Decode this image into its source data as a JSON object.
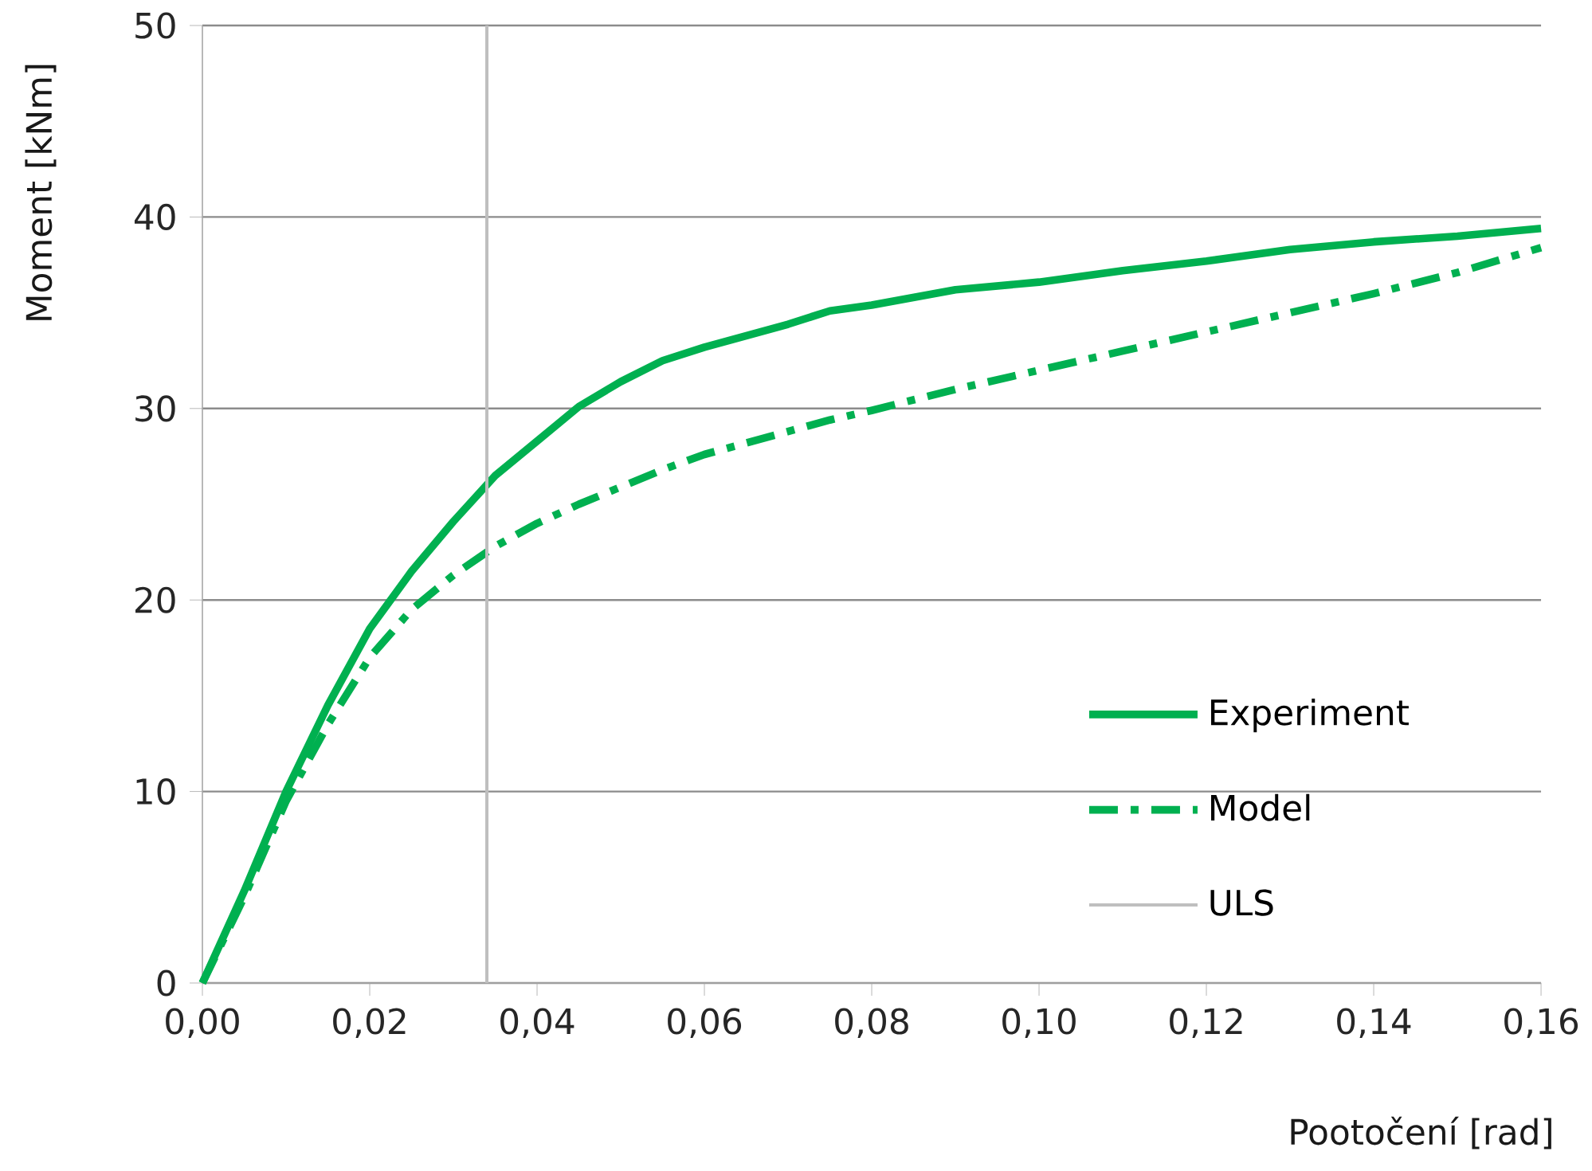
{
  "chart_data": {
    "type": "line",
    "xlabel": "Pootočení [rad]",
    "ylabel": "Moment  [kNm]",
    "x": [
      0,
      0.005,
      0.01,
      0.015,
      0.02,
      0.025,
      0.03,
      0.035,
      0.04,
      0.045,
      0.05,
      0.055,
      0.06,
      0.065,
      0.07,
      0.075,
      0.08,
      0.09,
      0.1,
      0.11,
      0.12,
      0.13,
      0.14,
      0.15,
      0.16
    ],
    "series": [
      {
        "name": "Experiment",
        "color": "#00b050",
        "line_style": "solid",
        "values": [
          0,
          4.8,
          10,
          14.5,
          18.5,
          21.5,
          24.1,
          26.5,
          28.3,
          30.1,
          31.4,
          32.5,
          33.2,
          33.8,
          34.4,
          35.1,
          35.4,
          36.2,
          36.6,
          37.2,
          37.7,
          38.3,
          38.7,
          39.0,
          39.4
        ]
      },
      {
        "name": "Model",
        "color": "#00b050",
        "line_style": "dashdot",
        "values": [
          0,
          4.5,
          9.5,
          13.5,
          17,
          19.5,
          21.3,
          22.8,
          24,
          25,
          25.9,
          26.8,
          27.6,
          28.2,
          28.8,
          29.4,
          29.9,
          31,
          32,
          33,
          34,
          35,
          36,
          37.1,
          38.4
        ]
      },
      {
        "name": "ULS",
        "color": "#bfbfbf",
        "line_style": "solid",
        "x": [
          0.034,
          0.034
        ],
        "values": [
          0,
          50
        ]
      }
    ],
    "xlim": [
      0,
      0.16
    ],
    "ylim": [
      0,
      50
    ],
    "xticks": [
      {
        "value": 0,
        "label": "0,00"
      },
      {
        "value": 0.02,
        "label": "0,02"
      },
      {
        "value": 0.04,
        "label": "0,04"
      },
      {
        "value": 0.06,
        "label": "0,06"
      },
      {
        "value": 0.08,
        "label": "0,08"
      },
      {
        "value": 0.1,
        "label": "0,10"
      },
      {
        "value": 0.12,
        "label": "0,12"
      },
      {
        "value": 0.14,
        "label": "0,14"
      },
      {
        "value": 0.16,
        "label": "0,16"
      }
    ],
    "yticks": [
      0,
      10,
      20,
      30,
      40,
      50
    ],
    "grid": "y",
    "legend": "bottom right",
    "marker": "none"
  }
}
